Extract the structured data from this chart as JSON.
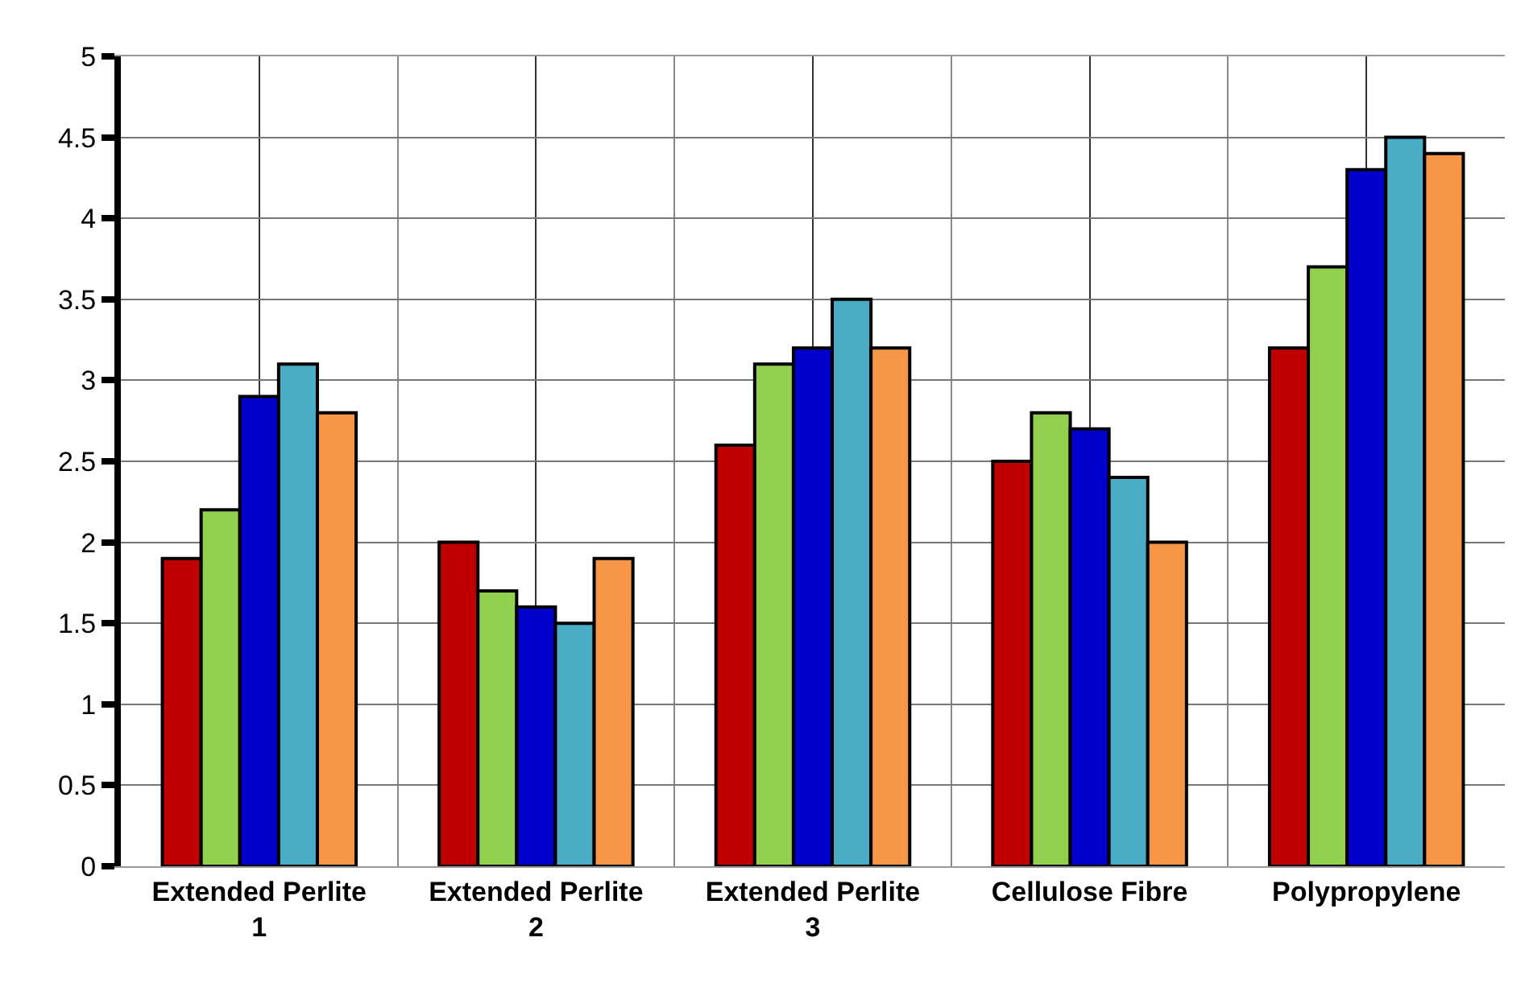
{
  "chart_data": {
    "type": "bar",
    "categories": [
      "Extended Perlite 1",
      "Extended Perlite 2",
      "Extended Perlite 3",
      "Cellulose Fibre",
      "Polypropylene"
    ],
    "series": [
      {
        "color": "#c00000",
        "values": [
          1.9,
          2.0,
          2.6,
          2.5,
          3.2
        ]
      },
      {
        "color": "#92d050",
        "values": [
          2.2,
          1.7,
          3.1,
          2.8,
          3.7
        ]
      },
      {
        "color": "#0000cc",
        "values": [
          2.9,
          1.6,
          3.2,
          2.7,
          4.3
        ]
      },
      {
        "color": "#4bacc6",
        "values": [
          3.1,
          1.5,
          3.5,
          2.4,
          4.5
        ]
      },
      {
        "color": "#f79646",
        "values": [
          2.8,
          1.9,
          3.2,
          2.0,
          4.4
        ]
      }
    ],
    "ylim": [
      0,
      5
    ],
    "yticks": [
      0,
      0.5,
      1,
      1.5,
      2,
      2.5,
      3,
      3.5,
      4,
      4.5,
      5
    ],
    "grid": true
  }
}
